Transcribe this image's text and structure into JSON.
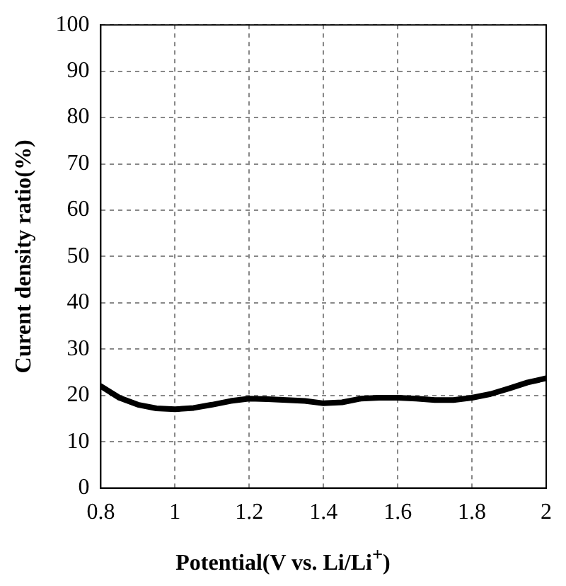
{
  "chart_data": {
    "type": "line",
    "xlabel": "Potential(V vs. Li/Li$^{+}$)",
    "ylabel": "Curent density ratio(%)",
    "x": [
      0.8,
      0.85,
      0.9,
      0.95,
      1.0,
      1.05,
      1.1,
      1.15,
      1.2,
      1.25,
      1.3,
      1.35,
      1.4,
      1.45,
      1.5,
      1.55,
      1.6,
      1.65,
      1.7,
      1.75,
      1.8,
      1.85,
      1.9,
      1.95,
      2.0
    ],
    "series": [
      {
        "color": "#000000",
        "values": [
          22,
          19.5,
          18,
          17.2,
          17,
          17.3,
          18,
          18.8,
          19.3,
          19.2,
          19,
          18.8,
          18.3,
          18.5,
          19.3,
          19.5,
          19.5,
          19.3,
          19,
          19,
          19.5,
          20.3,
          21.5,
          22.8,
          23.7
        ]
      }
    ],
    "xlim": [
      0.8,
      2
    ],
    "xticks": [
      0.8,
      1,
      1.2,
      1.4,
      1.6,
      1.8,
      2
    ],
    "ylim": [
      0,
      100
    ],
    "yticks": [
      0,
      10,
      20,
      30,
      40,
      50,
      60,
      70,
      80,
      90,
      100
    ],
    "grid": true,
    "legend": false,
    "marker": "none",
    "line_style": "solid"
  }
}
